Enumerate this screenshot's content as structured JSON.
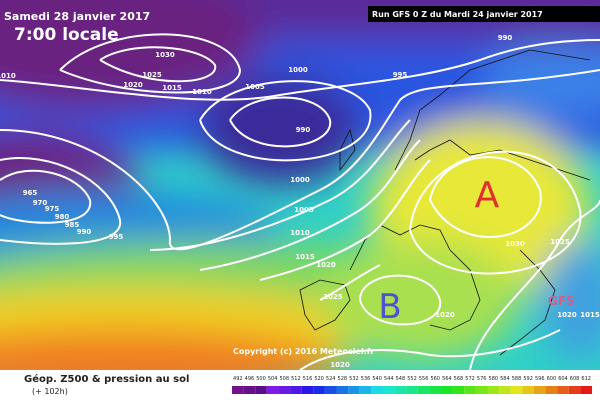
{
  "header": {
    "valid_date": "Samedi 28 janvier 2017",
    "local_time": "7:00 locale",
    "run_info": "Run GFS 0 Z du Mardi 24 janvier 2017"
  },
  "map": {
    "high_label": "A",
    "low_label": "B",
    "model_mark": "GFS",
    "copyright": "Copyright (c) 2016 Meteociel.fr",
    "isobar_labels": [
      "1030",
      "1025",
      "1020",
      "1015",
      "1010",
      "1005",
      "1000",
      "995",
      "990",
      "990",
      "1010",
      "965",
      "970",
      "975",
      "980",
      "985",
      "990",
      "995",
      "1000",
      "1005",
      "1010",
      "1015",
      "1020",
      "1025",
      "1020",
      "1030",
      "1025",
      "1020",
      "1015",
      "1020"
    ]
  },
  "legend": {
    "title": "Géop. Z500 & pression au sol",
    "lead_time": "(+ 102h)",
    "scale_labels": [
      "492",
      "496",
      "500",
      "504",
      "508",
      "512",
      "516",
      "520",
      "524",
      "528",
      "532",
      "536",
      "540",
      "544",
      "548",
      "552",
      "556",
      "560",
      "564",
      "568",
      "572",
      "576",
      "580",
      "584",
      "588",
      "592",
      "596",
      "600",
      "604",
      "608",
      "612"
    ]
  }
}
